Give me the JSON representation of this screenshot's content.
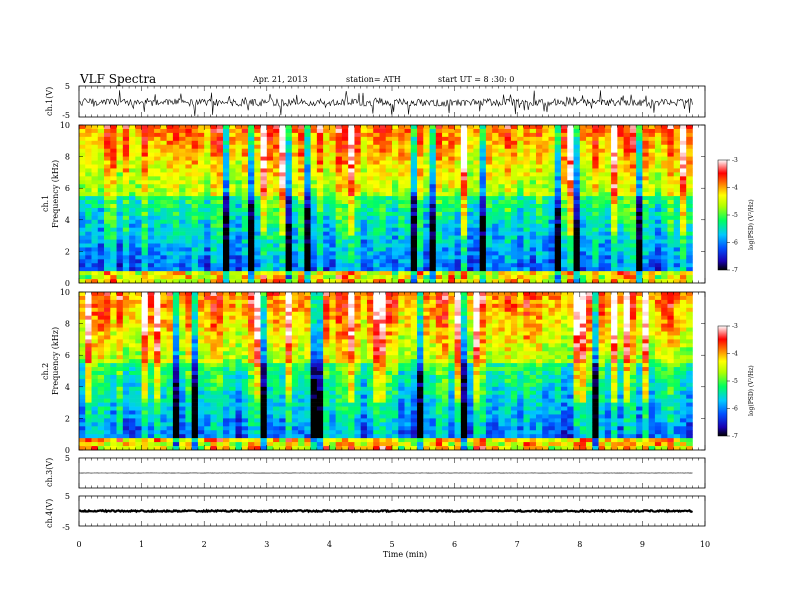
{
  "header": {
    "title": "VLF Spectra",
    "date": "Apr. 21, 2013",
    "station": "station= ATH",
    "start": "start UT = 8 :30: 0"
  },
  "chart_data": [
    {
      "type": "line",
      "panel": "ch1-waveform",
      "ylabel": "ch.1(V)",
      "ylim": [
        -5,
        5
      ],
      "yticks": [
        "5",
        "-5"
      ],
      "xlim": [
        0,
        10
      ],
      "baseline": -0.3,
      "noise_amplitude": 1.2,
      "spike_amplitude": 3.5,
      "color": "#000000"
    },
    {
      "type": "heatmap",
      "panel": "ch1-spectrogram",
      "ylabel": "ch.1",
      "ylabel2": "Frequency (kHz)",
      "ylim": [
        0,
        10
      ],
      "yticks": [
        "0",
        "2",
        "4",
        "6",
        "8",
        "10"
      ],
      "xlim": [
        0,
        9.8
      ],
      "seed": 11,
      "colorbar": {
        "label": "log(PSD) (V²/Hz)",
        "range": [
          -7,
          -3
        ],
        "ticks": [
          "-3",
          "-4",
          "-5",
          "-6",
          "-7"
        ]
      }
    },
    {
      "type": "heatmap",
      "panel": "ch2-spectrogram",
      "ylabel": "ch.2",
      "ylabel2": "Frequency (kHz)",
      "ylim": [
        0,
        10
      ],
      "yticks": [
        "0",
        "2",
        "4",
        "6",
        "8",
        "10"
      ],
      "xlim": [
        0,
        9.8
      ],
      "seed": 29,
      "colorbar": {
        "label": "log(PSD) (V²/Hz)",
        "range": [
          -7,
          -3
        ],
        "ticks": [
          "-3",
          "-4",
          "-5",
          "-6",
          "-7"
        ]
      }
    },
    {
      "type": "line",
      "panel": "ch3-waveform",
      "ylabel": "ch.3(V)",
      "ylim": [
        -5,
        5
      ],
      "yticks": [
        "5",
        "-5"
      ],
      "xlim": [
        0,
        10
      ],
      "baseline": 0,
      "noise_amplitude": 0.05,
      "color": "#000000"
    },
    {
      "type": "line",
      "panel": "ch4-waveform",
      "ylabel": "ch.4(V)",
      "ylim": [
        -5,
        5
      ],
      "yticks": [
        "5",
        "-5"
      ],
      "xlim": [
        0,
        10
      ],
      "baseline": 0,
      "noise_amplitude": 0.25,
      "color": "#000000"
    }
  ],
  "xaxis": {
    "label": "Time (min)",
    "range": [
      0,
      10
    ],
    "ticks": [
      "0",
      "1",
      "2",
      "3",
      "4",
      "5",
      "6",
      "7",
      "8",
      "9",
      "10"
    ]
  }
}
